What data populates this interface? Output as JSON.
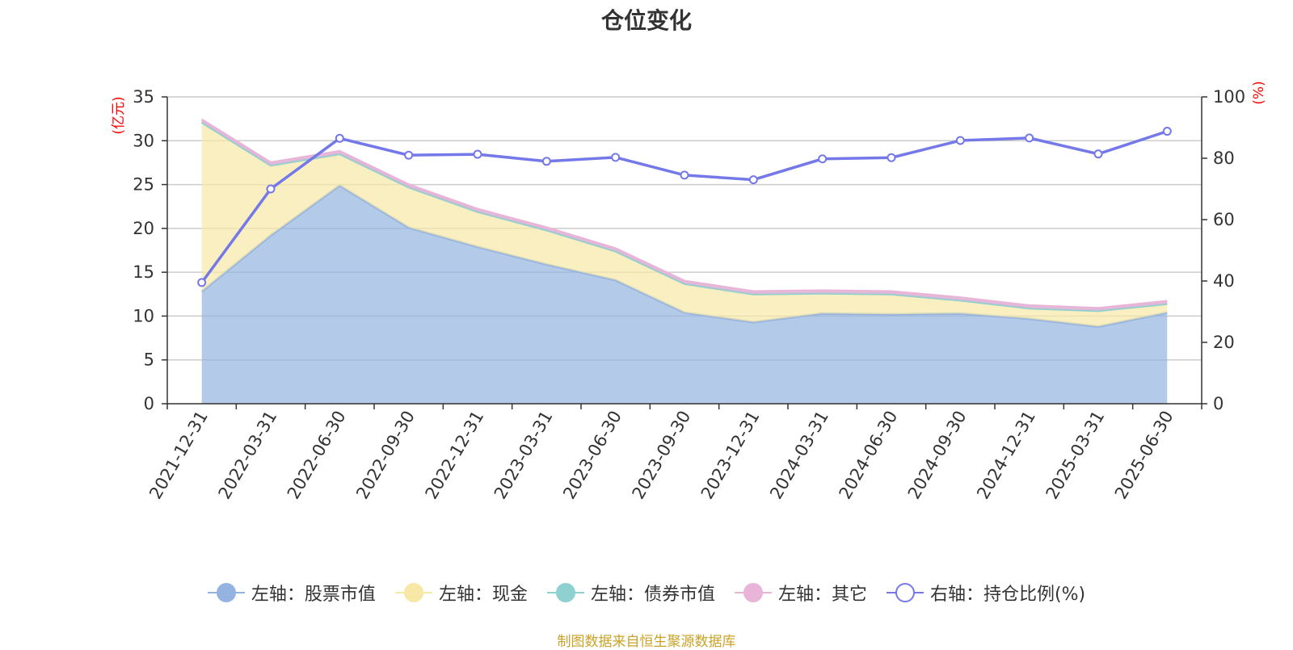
{
  "title": "仓位变化",
  "source_note": "制图数据来自恒生聚源数据库",
  "chart_data": {
    "type": "area",
    "categories": [
      "2021-12-31",
      "2022-03-31",
      "2022-06-30",
      "2022-09-30",
      "2022-12-31",
      "2023-03-31",
      "2023-06-30",
      "2023-09-30",
      "2023-12-31",
      "2024-03-31",
      "2024-06-30",
      "2024-09-30",
      "2024-12-31",
      "2025-03-31",
      "2025-06-30"
    ],
    "left_axis": {
      "unit": "(亿元)",
      "ylim": [
        0,
        35
      ],
      "ticks": [
        0,
        5,
        10,
        15,
        20,
        25,
        30,
        35
      ]
    },
    "right_axis": {
      "unit": "(%)",
      "ylim": [
        0,
        100
      ],
      "ticks": [
        0,
        20,
        40,
        60,
        80,
        100
      ]
    },
    "grid": true,
    "legend_position": "bottom",
    "series": [
      {
        "name": "左轴：股票市值",
        "axis": "left",
        "kind": "stacked-area",
        "color": "#94b3e0",
        "values": [
          12.8,
          19.2,
          24.9,
          20.1,
          17.9,
          15.9,
          14.1,
          10.4,
          9.3,
          10.3,
          10.2,
          10.3,
          9.7,
          8.8,
          10.4
        ]
      },
      {
        "name": "左轴：现金",
        "axis": "left",
        "kind": "stacked-area",
        "color": "#f7e8a6",
        "values": [
          19.3,
          8.0,
          3.6,
          4.6,
          4.0,
          3.9,
          3.3,
          3.3,
          3.2,
          2.3,
          2.3,
          1.5,
          1.2,
          1.8,
          1.0
        ]
      },
      {
        "name": "左轴：债券市值",
        "axis": "left",
        "kind": "stacked-area",
        "color": "#8fd0d0",
        "values": [
          0,
          0,
          0,
          0,
          0,
          0,
          0,
          0,
          0,
          0,
          0,
          0,
          0,
          0,
          0
        ]
      },
      {
        "name": "左轴：其它",
        "axis": "left",
        "kind": "stacked-area",
        "color": "#e8b4d8",
        "values": [
          0.3,
          0.3,
          0.3,
          0.3,
          0.3,
          0.3,
          0.3,
          0.3,
          0.3,
          0.3,
          0.3,
          0.3,
          0.3,
          0.3,
          0.3
        ]
      },
      {
        "name": "右轴：持仓比例(%)",
        "axis": "right",
        "kind": "line",
        "color": "#7478e8",
        "values": [
          39.5,
          70,
          86.5,
          81,
          81.3,
          79,
          80.3,
          74.5,
          73,
          79.8,
          80.2,
          85.8,
          86.6,
          81.4,
          88.8
        ]
      }
    ]
  }
}
